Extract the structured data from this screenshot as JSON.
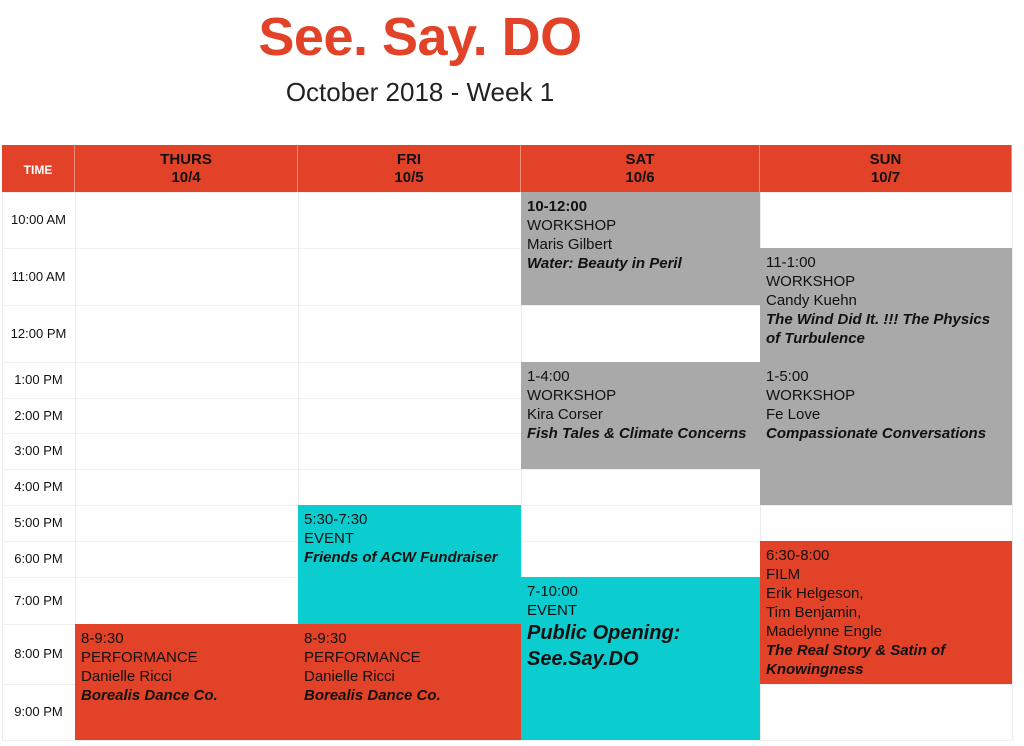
{
  "title": "See. Say. DO",
  "subtitle": "October 2018 - Week 1",
  "colors": {
    "accent": "#e24227",
    "workshop": "#a9a9a9",
    "event": "#0bcdd0"
  },
  "header": {
    "time": "TIME",
    "days": [
      {
        "day": "THURS",
        "date": "10/4"
      },
      {
        "day": "FRI",
        "date": "10/5"
      },
      {
        "day": "SAT",
        "date": "10/6"
      },
      {
        "day": "SUN",
        "date": "10/7"
      }
    ]
  },
  "times": [
    "10:00 AM",
    "11:00 AM",
    "12:00 PM",
    "1:00 PM",
    "2:00 PM",
    "3:00 PM",
    "4:00 PM",
    "5:00 PM",
    "6:00 PM",
    "7:00 PM",
    "8:00 PM",
    "9:00 PM"
  ],
  "events": {
    "sat_workshop_1": {
      "time": "10-12:00",
      "type": "WORKSHOP",
      "who": "Maris Gilbert",
      "name": "Water: Beauty in Peril"
    },
    "sun_workshop_1": {
      "time": "11-1:00",
      "type": "WORKSHOP",
      "who": "Candy Kuehn",
      "name": "The Wind Did It. !!! The Physics of Turbulence"
    },
    "sat_workshop_2": {
      "time": "1-4:00",
      "type": "WORKSHOP",
      "who": "Kira Corser",
      "name": "Fish Tales & Climate Concerns"
    },
    "sun_workshop_2": {
      "time": "1-5:00",
      "type": "WORKSHOP",
      "who": "Fe Love",
      "name": "Compassionate Conversations"
    },
    "fri_event": {
      "time": "5:30-7:30",
      "type": "EVENT",
      "name": "Friends of ACW Fundraiser"
    },
    "sat_event": {
      "time": "7-10:00",
      "type": "EVENT",
      "name": "Public Opening: See.Say.DO"
    },
    "sun_film": {
      "time": "6:30-8:00",
      "type": "FILM",
      "who1": "Erik Helgeson,",
      "who2": "Tim Benjamin,",
      "who3": "Madelynne Engle",
      "name": "The Real Story & Satin of Knowingness"
    },
    "thu_perf": {
      "time": "8-9:30",
      "type": "PERFORMANCE",
      "who": "Danielle Ricci",
      "name": "Borealis Dance Co."
    },
    "fri_perf": {
      "time": "8-9:30",
      "type": "PERFORMANCE",
      "who": "Danielle Ricci",
      "name": "Borealis Dance Co."
    }
  }
}
